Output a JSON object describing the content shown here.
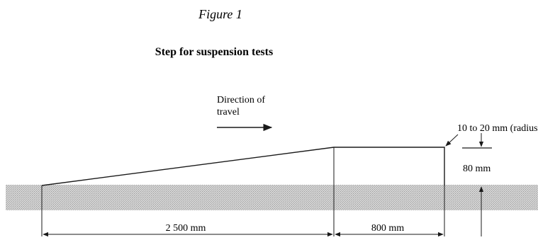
{
  "figure": {
    "label": "Figure 1",
    "title": "Step for suspension tests"
  },
  "annotations": {
    "direction_line1": "Direction of",
    "direction_line2": "travel",
    "radius": "10 to 20 mm (radius)",
    "height": "80 mm"
  },
  "dimensions": {
    "ramp_length": "2 500 mm",
    "flat_length": "800 mm"
  },
  "colors": {
    "ink": "#1a1a1a",
    "ground_hatch": "#b0b0b0",
    "ground_base": "#d6d6d6"
  }
}
